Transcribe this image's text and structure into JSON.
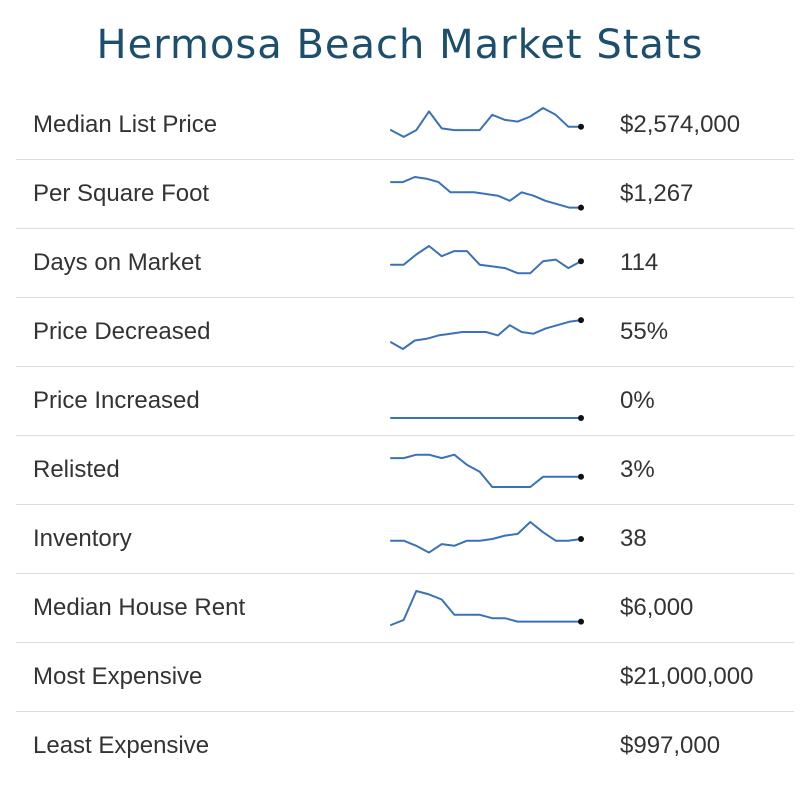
{
  "title": "Hermosa Beach Market Stats",
  "colors": {
    "title": "#1c4e6e",
    "sparkline": "#3a72b8",
    "endpoint": "#111111",
    "divider": "#dcdcdc",
    "text": "#333333"
  },
  "rows": [
    {
      "label": "Median List Price",
      "value": "$2,574,000",
      "trend": [
        0.35,
        0.15,
        0.35,
        0.9,
        0.4,
        0.35,
        0.35,
        0.35,
        0.8,
        0.65,
        0.6,
        0.75,
        1.0,
        0.8,
        0.45,
        0.45
      ]
    },
    {
      "label": "Per Square Foot",
      "value": "$1,267",
      "trend": [
        0.85,
        0.85,
        1.0,
        0.95,
        0.85,
        0.55,
        0.55,
        0.55,
        0.5,
        0.45,
        0.3,
        0.55,
        0.45,
        0.3,
        0.2,
        0.1,
        0.1
      ]
    },
    {
      "label": "Days on Market",
      "value": "114",
      "trend": [
        0.45,
        0.45,
        0.75,
        1.0,
        0.7,
        0.85,
        0.85,
        0.45,
        0.4,
        0.35,
        0.2,
        0.2,
        0.55,
        0.6,
        0.35,
        0.55
      ]
    },
    {
      "label": "Price Decreased",
      "value": "55%",
      "trend": [
        0.2,
        0.0,
        0.25,
        0.3,
        0.4,
        0.45,
        0.5,
        0.5,
        0.5,
        0.4,
        0.7,
        0.5,
        0.45,
        0.6,
        0.7,
        0.8,
        0.85
      ]
    },
    {
      "label": "Price Increased",
      "value": "0%",
      "trend": [
        0.0,
        0.0,
        0.0,
        0.0,
        0.0,
        0.0,
        0.0,
        0.0,
        0.0,
        0.0,
        0.0,
        0.0,
        0.0,
        0.0,
        0.0,
        0.0
      ]
    },
    {
      "label": "Relisted",
      "value": "3%",
      "trend": [
        0.85,
        0.85,
        0.95,
        0.95,
        0.85,
        0.95,
        0.65,
        0.45,
        0.0,
        0.0,
        0.0,
        0.0,
        0.3,
        0.3,
        0.3,
        0.3
      ]
    },
    {
      "label": "Inventory",
      "value": "38",
      "trend": [
        0.45,
        0.45,
        0.3,
        0.1,
        0.35,
        0.3,
        0.45,
        0.45,
        0.5,
        0.6,
        0.65,
        1.0,
        0.7,
        0.45,
        0.45,
        0.5
      ]
    },
    {
      "label": "Median House Rent",
      "value": "$6,000",
      "trend": [
        0.0,
        0.15,
        1.0,
        0.9,
        0.75,
        0.3,
        0.3,
        0.3,
        0.2,
        0.2,
        0.1,
        0.1,
        0.1,
        0.1,
        0.1,
        0.1
      ]
    },
    {
      "label": "Most Expensive",
      "value": "$21,000,000"
    },
    {
      "label": "Least Expensive",
      "value": "$997,000"
    }
  ]
}
